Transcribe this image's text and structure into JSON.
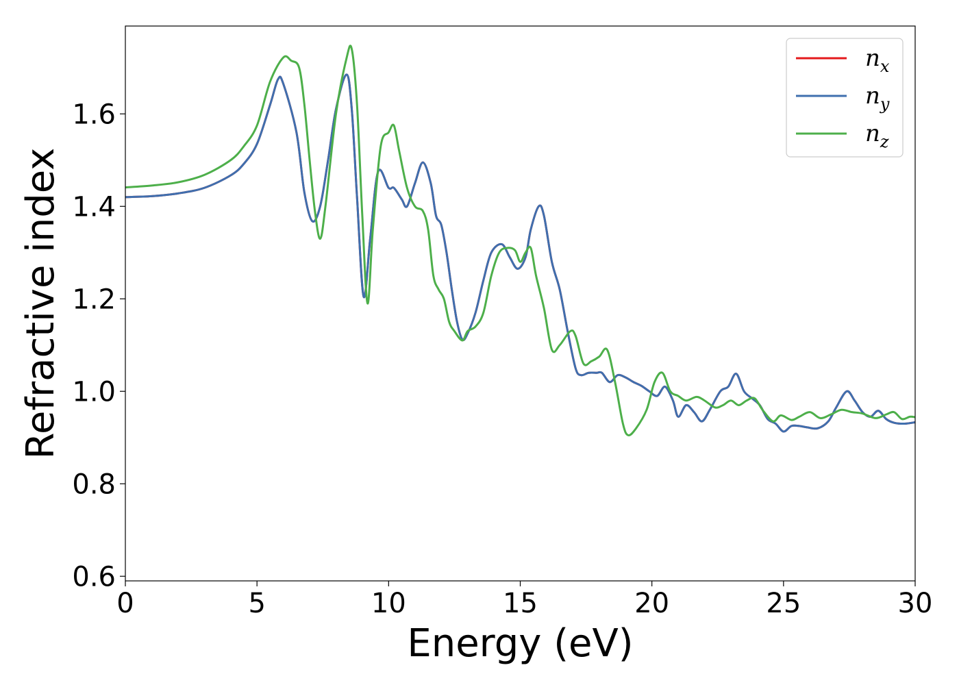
{
  "chart_data": {
    "type": "line",
    "title": "",
    "xlabel": "Energy (eV)",
    "ylabel": "Refractive index",
    "xlim": [
      0,
      30
    ],
    "ylim": [
      0.59,
      1.79
    ],
    "xticks": [
      0,
      5,
      10,
      15,
      20,
      25,
      30
    ],
    "yticks": [
      0.6,
      0.8,
      1.0,
      1.2,
      1.4,
      1.6
    ],
    "xtick_labels": [
      "0",
      "5",
      "10",
      "15",
      "20",
      "25",
      "30"
    ],
    "ytick_labels": [
      "0.6",
      "0.8",
      "1.0",
      "1.2",
      "1.4",
      "1.6"
    ],
    "grid": false,
    "legend_position": "top-right",
    "series": [
      {
        "name": "n_x",
        "label_main": "n",
        "label_sub": "x",
        "color": "#e41a1c",
        "points": [
          [
            0,
            1.42
          ],
          [
            1,
            1.422
          ],
          [
            2,
            1.428
          ],
          [
            3,
            1.44
          ],
          [
            4,
            1.467
          ],
          [
            4.5,
            1.492
          ],
          [
            5,
            1.535
          ],
          [
            5.5,
            1.62
          ],
          [
            5.8,
            1.675
          ],
          [
            6,
            1.665
          ],
          [
            6.5,
            1.56
          ],
          [
            6.8,
            1.43
          ],
          [
            7.1,
            1.368
          ],
          [
            7.4,
            1.4
          ],
          [
            7.7,
            1.5
          ],
          [
            8,
            1.61
          ],
          [
            8.4,
            1.685
          ],
          [
            8.6,
            1.61
          ],
          [
            8.8,
            1.42
          ],
          [
            9.05,
            1.205
          ],
          [
            9.3,
            1.33
          ],
          [
            9.6,
            1.475
          ],
          [
            10,
            1.44
          ],
          [
            10.2,
            1.44
          ],
          [
            10.5,
            1.415
          ],
          [
            10.7,
            1.4
          ],
          [
            11,
            1.45
          ],
          [
            11.3,
            1.495
          ],
          [
            11.6,
            1.45
          ],
          [
            11.8,
            1.38
          ],
          [
            12,
            1.36
          ],
          [
            12.2,
            1.3
          ],
          [
            12.4,
            1.22
          ],
          [
            12.6,
            1.15
          ],
          [
            12.8,
            1.112
          ],
          [
            13,
            1.125
          ],
          [
            13.3,
            1.17
          ],
          [
            13.6,
            1.24
          ],
          [
            13.9,
            1.3
          ],
          [
            14.3,
            1.318
          ],
          [
            14.6,
            1.29
          ],
          [
            14.9,
            1.265
          ],
          [
            15.2,
            1.29
          ],
          [
            15.4,
            1.35
          ],
          [
            15.7,
            1.4
          ],
          [
            15.9,
            1.38
          ],
          [
            16.2,
            1.28
          ],
          [
            16.5,
            1.22
          ],
          [
            16.8,
            1.13
          ],
          [
            17.1,
            1.05
          ],
          [
            17.3,
            1.035
          ],
          [
            17.6,
            1.04
          ],
          [
            17.9,
            1.04
          ],
          [
            18.1,
            1.04
          ],
          [
            18.4,
            1.02
          ],
          [
            18.7,
            1.035
          ],
          [
            19,
            1.03
          ],
          [
            19.3,
            1.02
          ],
          [
            19.6,
            1.012
          ],
          [
            19.9,
            1.0
          ],
          [
            20.2,
            0.99
          ],
          [
            20.5,
            1.01
          ],
          [
            20.8,
            0.98
          ],
          [
            21,
            0.945
          ],
          [
            21.3,
            0.97
          ],
          [
            21.6,
            0.955
          ],
          [
            21.9,
            0.935
          ],
          [
            22.2,
            0.96
          ],
          [
            22.6,
            1.0
          ],
          [
            22.9,
            1.01
          ],
          [
            23.2,
            1.038
          ],
          [
            23.5,
            1.0
          ],
          [
            23.8,
            0.985
          ],
          [
            24.1,
            0.97
          ],
          [
            24.4,
            0.94
          ],
          [
            24.7,
            0.93
          ],
          [
            25,
            0.913
          ],
          [
            25.3,
            0.925
          ],
          [
            25.6,
            0.925
          ],
          [
            25.9,
            0.922
          ],
          [
            26.3,
            0.92
          ],
          [
            26.7,
            0.935
          ],
          [
            27,
            0.965
          ],
          [
            27.4,
            1.0
          ],
          [
            27.7,
            0.98
          ],
          [
            28,
            0.955
          ],
          [
            28.3,
            0.945
          ],
          [
            28.6,
            0.958
          ],
          [
            28.9,
            0.94
          ],
          [
            29.2,
            0.932
          ],
          [
            29.6,
            0.93
          ],
          [
            30,
            0.933
          ]
        ]
      },
      {
        "name": "n_y",
        "label_main": "n",
        "label_sub": "y",
        "color": "#3f6fae",
        "points": [
          [
            0,
            1.42
          ],
          [
            1,
            1.422
          ],
          [
            2,
            1.428
          ],
          [
            3,
            1.44
          ],
          [
            4,
            1.467
          ],
          [
            4.5,
            1.492
          ],
          [
            5,
            1.535
          ],
          [
            5.5,
            1.62
          ],
          [
            5.8,
            1.675
          ],
          [
            6,
            1.665
          ],
          [
            6.5,
            1.56
          ],
          [
            6.8,
            1.43
          ],
          [
            7.1,
            1.368
          ],
          [
            7.4,
            1.4
          ],
          [
            7.7,
            1.5
          ],
          [
            8,
            1.61
          ],
          [
            8.4,
            1.685
          ],
          [
            8.6,
            1.61
          ],
          [
            8.8,
            1.42
          ],
          [
            9.05,
            1.205
          ],
          [
            9.3,
            1.33
          ],
          [
            9.6,
            1.475
          ],
          [
            10,
            1.44
          ],
          [
            10.2,
            1.44
          ],
          [
            10.5,
            1.415
          ],
          [
            10.7,
            1.4
          ],
          [
            11,
            1.45
          ],
          [
            11.3,
            1.495
          ],
          [
            11.6,
            1.45
          ],
          [
            11.8,
            1.38
          ],
          [
            12,
            1.36
          ],
          [
            12.2,
            1.3
          ],
          [
            12.4,
            1.22
          ],
          [
            12.6,
            1.15
          ],
          [
            12.8,
            1.112
          ],
          [
            13,
            1.125
          ],
          [
            13.3,
            1.17
          ],
          [
            13.6,
            1.24
          ],
          [
            13.9,
            1.3
          ],
          [
            14.3,
            1.318
          ],
          [
            14.6,
            1.29
          ],
          [
            14.9,
            1.265
          ],
          [
            15.2,
            1.29
          ],
          [
            15.4,
            1.35
          ],
          [
            15.7,
            1.4
          ],
          [
            15.9,
            1.38
          ],
          [
            16.2,
            1.28
          ],
          [
            16.5,
            1.22
          ],
          [
            16.8,
            1.13
          ],
          [
            17.1,
            1.05
          ],
          [
            17.3,
            1.035
          ],
          [
            17.6,
            1.04
          ],
          [
            17.9,
            1.04
          ],
          [
            18.1,
            1.04
          ],
          [
            18.4,
            1.02
          ],
          [
            18.7,
            1.035
          ],
          [
            19,
            1.03
          ],
          [
            19.3,
            1.02
          ],
          [
            19.6,
            1.012
          ],
          [
            19.9,
            1.0
          ],
          [
            20.2,
            0.99
          ],
          [
            20.5,
            1.01
          ],
          [
            20.8,
            0.98
          ],
          [
            21,
            0.945
          ],
          [
            21.3,
            0.97
          ],
          [
            21.6,
            0.955
          ],
          [
            21.9,
            0.935
          ],
          [
            22.2,
            0.96
          ],
          [
            22.6,
            1.0
          ],
          [
            22.9,
            1.01
          ],
          [
            23.2,
            1.038
          ],
          [
            23.5,
            1.0
          ],
          [
            23.8,
            0.985
          ],
          [
            24.1,
            0.97
          ],
          [
            24.4,
            0.94
          ],
          [
            24.7,
            0.93
          ],
          [
            25,
            0.913
          ],
          [
            25.3,
            0.925
          ],
          [
            25.6,
            0.925
          ],
          [
            25.9,
            0.922
          ],
          [
            26.3,
            0.92
          ],
          [
            26.7,
            0.935
          ],
          [
            27,
            0.965
          ],
          [
            27.4,
            1.0
          ],
          [
            27.7,
            0.98
          ],
          [
            28,
            0.955
          ],
          [
            28.3,
            0.945
          ],
          [
            28.6,
            0.958
          ],
          [
            28.9,
            0.94
          ],
          [
            29.2,
            0.932
          ],
          [
            29.6,
            0.93
          ],
          [
            30,
            0.933
          ]
        ]
      },
      {
        "name": "n_z",
        "label_main": "n",
        "label_sub": "z",
        "color": "#4daf4a",
        "points": [
          [
            0,
            1.441
          ],
          [
            1,
            1.445
          ],
          [
            2,
            1.452
          ],
          [
            3,
            1.468
          ],
          [
            4,
            1.5
          ],
          [
            4.5,
            1.53
          ],
          [
            5,
            1.575
          ],
          [
            5.5,
            1.67
          ],
          [
            6,
            1.722
          ],
          [
            6.3,
            1.715
          ],
          [
            6.6,
            1.7
          ],
          [
            6.8,
            1.62
          ],
          [
            7,
            1.5
          ],
          [
            7.2,
            1.39
          ],
          [
            7.4,
            1.33
          ],
          [
            7.6,
            1.4
          ],
          [
            8,
            1.6
          ],
          [
            8.4,
            1.72
          ],
          [
            8.6,
            1.74
          ],
          [
            8.8,
            1.62
          ],
          [
            9,
            1.38
          ],
          [
            9.2,
            1.19
          ],
          [
            9.4,
            1.35
          ],
          [
            9.7,
            1.53
          ],
          [
            10,
            1.56
          ],
          [
            10.2,
            1.575
          ],
          [
            10.4,
            1.52
          ],
          [
            10.7,
            1.44
          ],
          [
            11,
            1.4
          ],
          [
            11.3,
            1.39
          ],
          [
            11.5,
            1.35
          ],
          [
            11.7,
            1.25
          ],
          [
            11.9,
            1.22
          ],
          [
            12.1,
            1.2
          ],
          [
            12.3,
            1.15
          ],
          [
            12.5,
            1.13
          ],
          [
            12.8,
            1.11
          ],
          [
            13,
            1.13
          ],
          [
            13.3,
            1.14
          ],
          [
            13.6,
            1.17
          ],
          [
            13.9,
            1.25
          ],
          [
            14.2,
            1.3
          ],
          [
            14.5,
            1.31
          ],
          [
            14.8,
            1.305
          ],
          [
            15,
            1.28
          ],
          [
            15.2,
            1.3
          ],
          [
            15.4,
            1.31
          ],
          [
            15.6,
            1.25
          ],
          [
            15.9,
            1.18
          ],
          [
            16.2,
            1.09
          ],
          [
            16.5,
            1.1
          ],
          [
            16.9,
            1.13
          ],
          [
            17.1,
            1.12
          ],
          [
            17.4,
            1.06
          ],
          [
            17.7,
            1.065
          ],
          [
            18,
            1.075
          ],
          [
            18.3,
            1.09
          ],
          [
            18.6,
            1.02
          ],
          [
            18.9,
            0.93
          ],
          [
            19.1,
            0.905
          ],
          [
            19.4,
            0.92
          ],
          [
            19.8,
            0.96
          ],
          [
            20.1,
            1.02
          ],
          [
            20.4,
            1.04
          ],
          [
            20.7,
            1.0
          ],
          [
            21,
            0.99
          ],
          [
            21.3,
            0.98
          ],
          [
            21.7,
            0.988
          ],
          [
            22,
            0.98
          ],
          [
            22.4,
            0.965
          ],
          [
            22.7,
            0.97
          ],
          [
            23,
            0.98
          ],
          [
            23.3,
            0.97
          ],
          [
            23.6,
            0.98
          ],
          [
            23.9,
            0.985
          ],
          [
            24.2,
            0.96
          ],
          [
            24.6,
            0.935
          ],
          [
            24.9,
            0.948
          ],
          [
            25.3,
            0.938
          ],
          [
            25.6,
            0.945
          ],
          [
            26,
            0.955
          ],
          [
            26.4,
            0.942
          ],
          [
            26.8,
            0.95
          ],
          [
            27.2,
            0.96
          ],
          [
            27.6,
            0.955
          ],
          [
            28,
            0.952
          ],
          [
            28.5,
            0.942
          ],
          [
            28.9,
            0.95
          ],
          [
            29.2,
            0.955
          ],
          [
            29.5,
            0.94
          ],
          [
            29.8,
            0.945
          ],
          [
            30,
            0.944
          ]
        ]
      }
    ]
  }
}
